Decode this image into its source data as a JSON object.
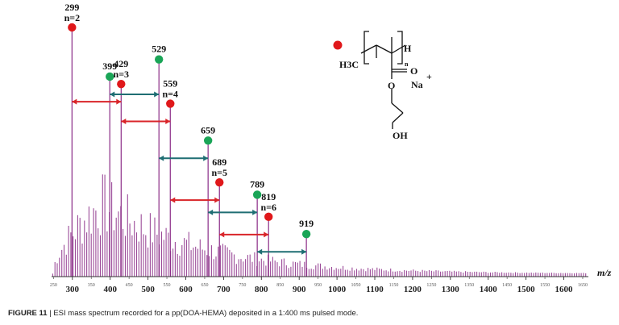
{
  "chart_data": {
    "type": "bar",
    "xlabel": "m/z",
    "ylabel": "",
    "xlim": [
      245,
      1665
    ],
    "grid": false,
    "colors": {
      "spectrum": "#8a2b86",
      "red_marker": "#e0181b",
      "green_marker": "#1aa557",
      "red_arrow": "#d9252a",
      "teal_arrow": "#1f6e73"
    },
    "major_ticks": [
      {
        "value": 300,
        "label": "300"
      },
      {
        "value": 400,
        "label": "400"
      },
      {
        "value": 500,
        "label": "500"
      },
      {
        "value": 600,
        "label": "600"
      },
      {
        "value": 700,
        "label": "700"
      },
      {
        "value": 800,
        "label": "800"
      },
      {
        "value": 900,
        "label": "900"
      },
      {
        "value": 1000,
        "label": "1000"
      },
      {
        "value": 1100,
        "label": "1100"
      },
      {
        "value": 1200,
        "label": "1200"
      },
      {
        "value": 1300,
        "label": "1300"
      },
      {
        "value": 1400,
        "label": "1400"
      },
      {
        "value": 1500,
        "label": "1500"
      },
      {
        "value": 1600,
        "label": "1600"
      }
    ],
    "minor_ticks": [
      {
        "value": 250,
        "label": "250"
      },
      {
        "value": 350,
        "label": "350"
      },
      {
        "value": 450,
        "label": "450"
      },
      {
        "value": 550,
        "label": "550"
      },
      {
        "value": 650,
        "label": "650"
      },
      {
        "value": 750,
        "label": "750"
      },
      {
        "value": 850,
        "label": "850"
      },
      {
        "value": 950,
        "label": "950"
      },
      {
        "value": 1050,
        "label": "1050"
      },
      {
        "value": 1150,
        "label": "1150"
      },
      {
        "value": 1250,
        "label": "1250"
      },
      {
        "value": 1350,
        "label": "1350"
      },
      {
        "value": 1450,
        "label": "1450"
      },
      {
        "value": 1550,
        "label": "1550"
      },
      {
        "value": 1650,
        "label": "1650"
      }
    ],
    "labeled_peaks": [
      {
        "mz": 299,
        "intensity": 100,
        "series": "red",
        "label": "299",
        "sublabel": "n=2"
      },
      {
        "mz": 399,
        "intensity": 80,
        "series": "green",
        "label": "399",
        "sublabel": ""
      },
      {
        "mz": 429,
        "intensity": 77,
        "series": "red",
        "label": "429",
        "sublabel": "n=3"
      },
      {
        "mz": 529,
        "intensity": 87,
        "series": "green",
        "label": "529",
        "sublabel": ""
      },
      {
        "mz": 559,
        "intensity": 69,
        "series": "red",
        "label": "559",
        "sublabel": "n=4"
      },
      {
        "mz": 659,
        "intensity": 54,
        "series": "green",
        "label": "659",
        "sublabel": ""
      },
      {
        "mz": 689,
        "intensity": 37,
        "series": "red",
        "label": "689",
        "sublabel": "n=5"
      },
      {
        "mz": 789,
        "intensity": 32,
        "series": "green",
        "label": "789",
        "sublabel": ""
      },
      {
        "mz": 819,
        "intensity": 23,
        "series": "red",
        "label": "819",
        "sublabel": "n=6"
      },
      {
        "mz": 919,
        "intensity": 16,
        "series": "green",
        "label": "919",
        "sublabel": ""
      }
    ],
    "spacing_arrows": [
      {
        "from": 299,
        "to": 429,
        "color": "red"
      },
      {
        "from": 399,
        "to": 529,
        "color": "teal"
      },
      {
        "from": 429,
        "to": 559,
        "color": "red"
      },
      {
        "from": 529,
        "to": 659,
        "color": "teal"
      },
      {
        "from": 559,
        "to": 689,
        "color": "red"
      },
      {
        "from": 659,
        "to": 789,
        "color": "teal"
      },
      {
        "from": 689,
        "to": 819,
        "color": "red"
      },
      {
        "from": 789,
        "to": 919,
        "color": "teal"
      }
    ],
    "background_peaks": {
      "start": 248,
      "end": 1660,
      "step": 6,
      "envelope_peak_mz": 380,
      "envelope_max": 42,
      "envelope_decay": 260
    }
  },
  "structure": {
    "h3c": "H3C",
    "h": "H",
    "n": "n",
    "o_carbonyl": "O",
    "o_ester": "O",
    "na": "Na",
    "plus": "+",
    "oh": "OH"
  },
  "caption": {
    "label": "FIGURE 11",
    "separator": "|",
    "text": "ESI mass spectrum recorded for a pp(DOA-HEMA) deposited in a 1:400 ms pulsed mode."
  }
}
